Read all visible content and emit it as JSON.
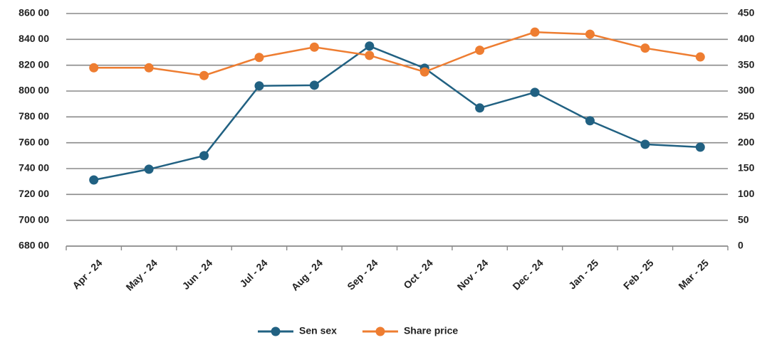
{
  "chart_data": {
    "type": "line",
    "categories": [
      "Apr - 24",
      "May - 24",
      "Jun - 24",
      "Jul - 24",
      "Aug - 24",
      "Sep - 24",
      "Oct - 24",
      "Nov - 24",
      "Dec - 24",
      "Jan - 25",
      "Feb - 25",
      "Mar - 25"
    ],
    "series": [
      {
        "name": "Sen sex",
        "color": "#216182",
        "values": [
          73120,
          73950,
          75000,
          80400,
          80450,
          83480,
          81770,
          78690,
          79900,
          77700,
          75880,
          75660
        ]
      },
      {
        "name": "Share price",
        "color": "#ee7d31",
        "axis": "y2",
        "values": [
          345,
          345,
          330,
          365,
          385,
          369,
          337,
          379,
          414,
          410,
          383,
          366
        ]
      }
    ],
    "ylim": [
      68000,
      86000
    ],
    "yticks": [
      {
        "value": 68000,
        "label": "680 00"
      },
      {
        "value": 70000,
        "label": "700 00"
      },
      {
        "value": 72000,
        "label": "720 00"
      },
      {
        "value": 74000,
        "label": "740 00"
      },
      {
        "value": 76000,
        "label": "760 00"
      },
      {
        "value": 78000,
        "label": "780 00"
      },
      {
        "value": 80000,
        "label": "800 00"
      },
      {
        "value": 82000,
        "label": "820 00"
      },
      {
        "value": 84000,
        "label": "840 00"
      },
      {
        "value": 86000,
        "label": "860 00"
      }
    ],
    "y2lim": [
      0,
      450
    ],
    "y2ticks": [
      0,
      50,
      100,
      150,
      200,
      250,
      300,
      350,
      400,
      450
    ],
    "grid": true,
    "legend": "bottom"
  }
}
